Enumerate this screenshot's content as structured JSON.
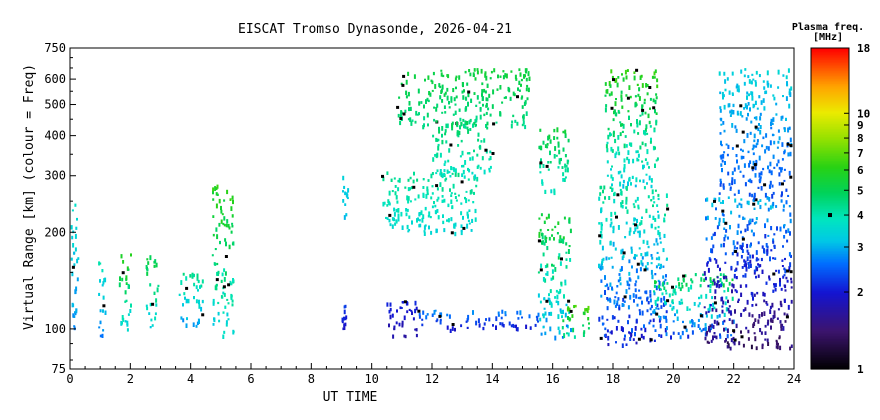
{
  "chart_data": {
    "type": "heatmap",
    "title": "EISCAT Tromso Dynasonde, 2026-04-21",
    "xlabel": "UT TIME",
    "ylabel": "Virtual Range [km] (colour = Freq)",
    "xlim": [
      0,
      24
    ],
    "ylim": [
      75,
      750
    ],
    "y_scale": "log",
    "x_ticks": [
      0,
      2,
      4,
      6,
      8,
      10,
      12,
      14,
      16,
      18,
      20,
      22,
      24
    ],
    "y_ticks": [
      75,
      100,
      200,
      300,
      400,
      500,
      600,
      750
    ],
    "colorbar": {
      "title_line1": "Plasma freq.",
      "title_line2": "[MHz]",
      "scale": "log",
      "range": [
        1,
        18
      ],
      "ticks": [
        1,
        2,
        3,
        4,
        5,
        6,
        7,
        8,
        9,
        10,
        18
      ],
      "marker_value": 4
    },
    "regions": [
      {
        "t0": 0.0,
        "t1": 0.25,
        "r0": 97,
        "r1": 270,
        "f0": 2.6,
        "f1": 3.8
      },
      {
        "t0": 0.9,
        "t1": 1.15,
        "r0": 95,
        "r1": 175,
        "f0": 2.5,
        "f1": 4.2
      },
      {
        "t0": 1.6,
        "t1": 2.0,
        "r0": 100,
        "r1": 175,
        "f0": 3.0,
        "f1": 6.5
      },
      {
        "t0": 2.5,
        "t1": 2.9,
        "r0": 100,
        "r1": 170,
        "f0": 3.0,
        "f1": 5.5
      },
      {
        "t0": 3.6,
        "t1": 4.4,
        "r0": 100,
        "r1": 150,
        "f0": 2.5,
        "f1": 4.5
      },
      {
        "t0": 4.7,
        "t1": 5.4,
        "r0": 95,
        "r1": 290,
        "f0": 3.0,
        "f1": 6.5
      },
      {
        "t0": 9.0,
        "t1": 9.15,
        "r0": 100,
        "r1": 120,
        "f0": 1.8,
        "f1": 2.3
      },
      {
        "t0": 9.0,
        "t1": 9.2,
        "r0": 215,
        "r1": 310,
        "f0": 3.0,
        "f1": 3.5
      },
      {
        "t0": 10.4,
        "t1": 11.5,
        "r0": 95,
        "r1": 125,
        "f0": 1.6,
        "f1": 2.2
      },
      {
        "t0": 11.5,
        "t1": 15.5,
        "r0": 100,
        "r1": 115,
        "f0": 1.8,
        "f1": 2.8
      },
      {
        "t0": 10.3,
        "t1": 13.5,
        "r0": 200,
        "r1": 310,
        "f0": 3.3,
        "f1": 4.5
      },
      {
        "t0": 10.8,
        "t1": 15.2,
        "r0": 430,
        "r1": 650,
        "f0": 4.2,
        "f1": 5.5
      },
      {
        "t0": 12.0,
        "t1": 14.0,
        "r0": 300,
        "r1": 450,
        "f0": 3.5,
        "f1": 5.0
      },
      {
        "t0": 15.5,
        "t1": 16.5,
        "r0": 270,
        "r1": 430,
        "f0": 3.5,
        "f1": 5.5
      },
      {
        "t0": 15.5,
        "t1": 16.6,
        "r0": 95,
        "r1": 230,
        "f0": 2.5,
        "f1": 6.0
      },
      {
        "t0": 16.3,
        "t1": 17.3,
        "r0": 95,
        "r1": 120,
        "f0": 3.5,
        "f1": 7.0
      },
      {
        "t0": 17.5,
        "t1": 19.8,
        "r0": 90,
        "r1": 280,
        "f0": 1.8,
        "f1": 4.5
      },
      {
        "t0": 17.7,
        "t1": 19.5,
        "r0": 280,
        "r1": 650,
        "f0": 3.0,
        "f1": 6.5
      },
      {
        "t0": 19.3,
        "t1": 22.0,
        "r0": 95,
        "r1": 150,
        "f0": 2.0,
        "f1": 5.5
      },
      {
        "t0": 21.0,
        "t1": 23.9,
        "r0": 88,
        "r1": 260,
        "f0": 1.2,
        "f1": 3.2
      },
      {
        "t0": 21.5,
        "t1": 23.9,
        "r0": 260,
        "r1": 650,
        "f0": 2.2,
        "f1": 3.5
      }
    ]
  }
}
